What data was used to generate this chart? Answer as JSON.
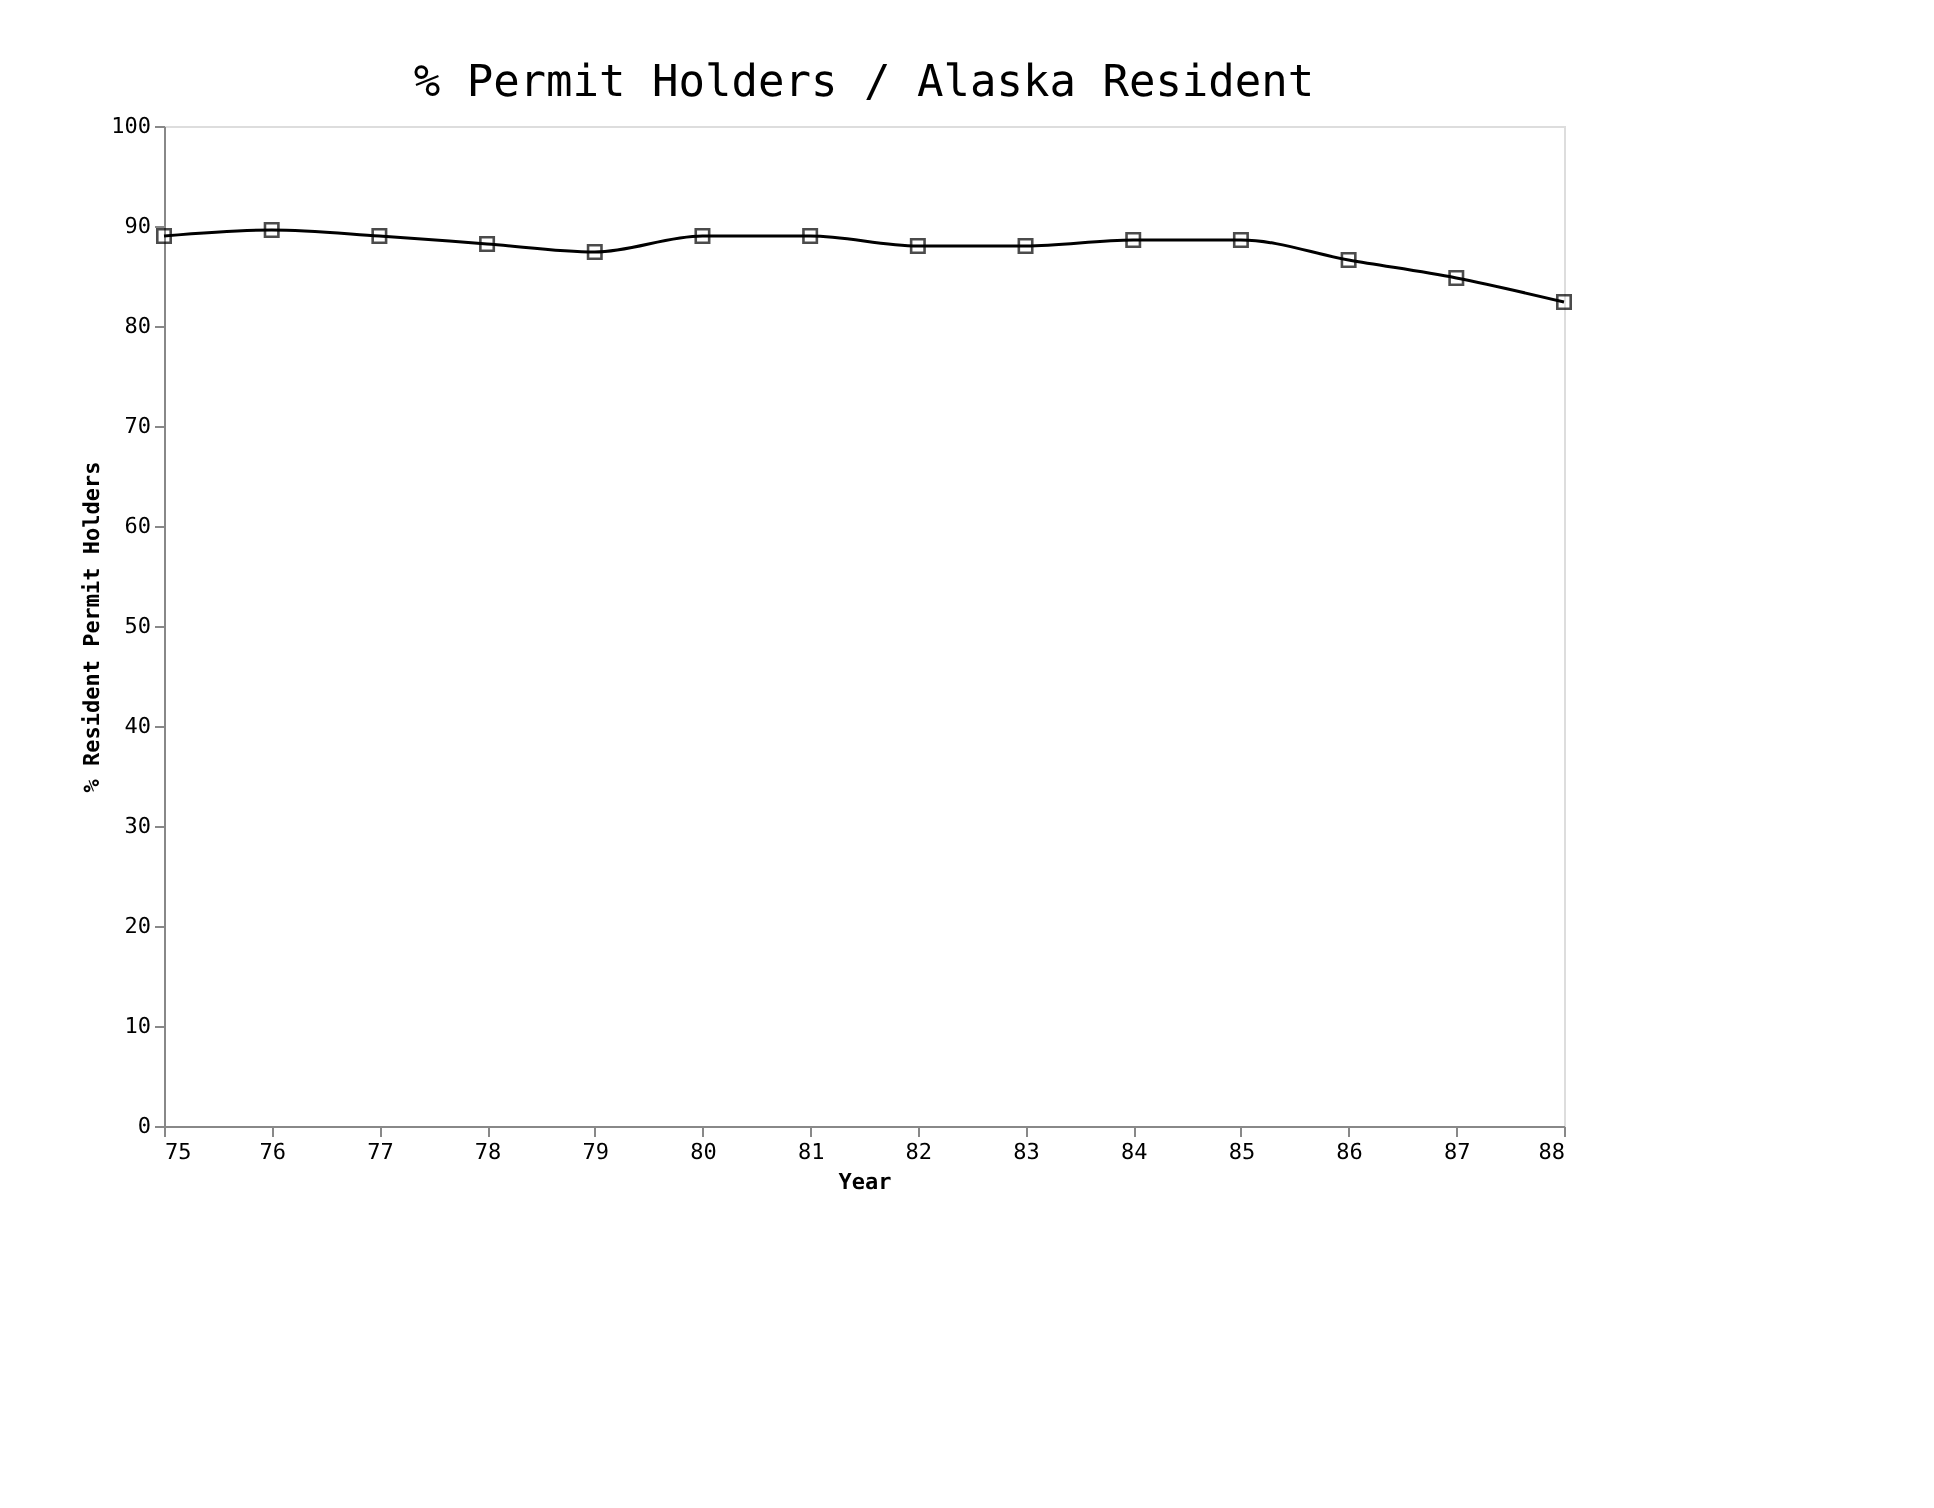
{
  "chart_data": {
    "type": "line",
    "title": "% Permit Holders / Alaska Resident",
    "xlabel": "Year",
    "ylabel": "% Resident Permit Holders",
    "categories": [
      "75",
      "76",
      "77",
      "78",
      "79",
      "80",
      "81",
      "82",
      "83",
      "84",
      "85",
      "86",
      "87",
      "88"
    ],
    "series": [
      {
        "color": "#000000",
        "values": [
          89,
          89.6,
          89,
          88.2,
          87.4,
          89,
          89,
          88,
          88,
          88.6,
          88.6,
          86.6,
          84.8,
          82.4
        ]
      }
    ],
    "ylim": [
      0,
      100
    ],
    "yticks": [
      0,
      10,
      20,
      30,
      40,
      50,
      60,
      70,
      80,
      90,
      100
    ],
    "marker": "square",
    "line_style": "solid",
    "grid": false
  }
}
